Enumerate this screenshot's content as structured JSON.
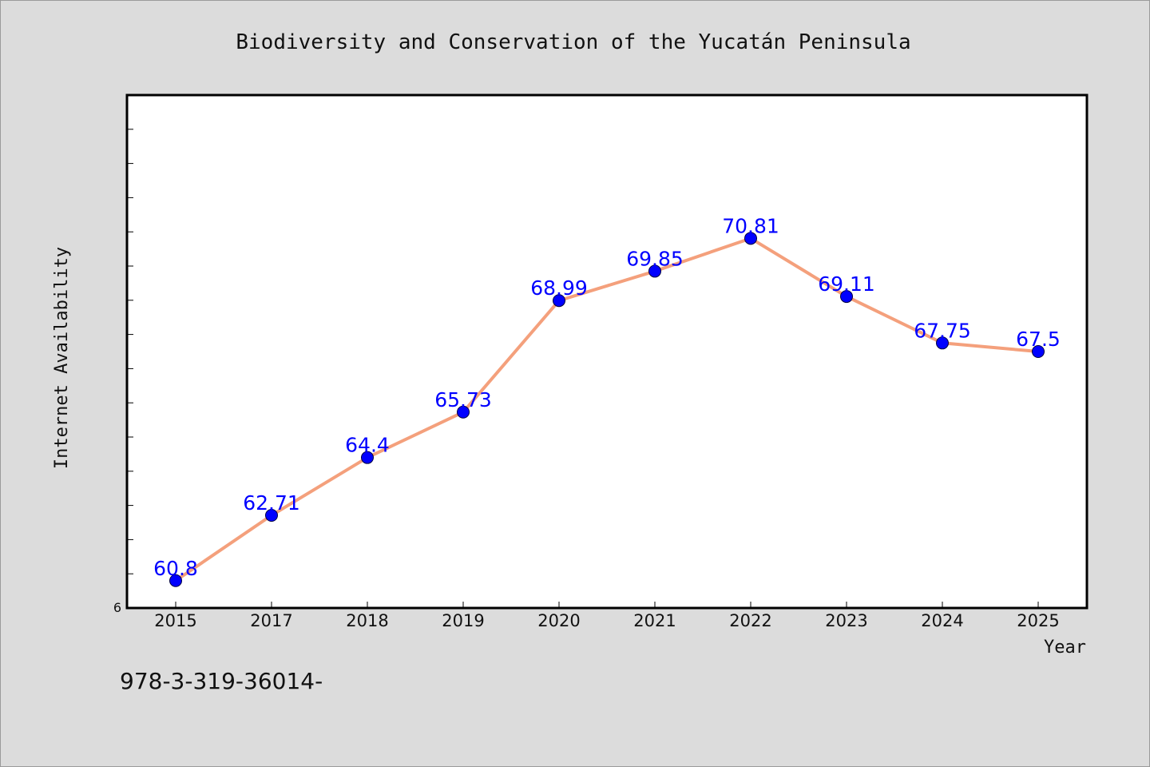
{
  "chart_data": {
    "type": "line",
    "title": "Biodiversity and Conservation of the Yucatán Peninsula",
    "xlabel": "Year",
    "ylabel": "Internet Availability",
    "categories": [
      "2015",
      "2017",
      "2018",
      "2019",
      "2020",
      "2021",
      "2022",
      "2023",
      "2024",
      "2025"
    ],
    "series": [
      {
        "values": [
          60.8,
          62.71,
          64.4,
          65.73,
          68.99,
          69.85,
          70.81,
          69.11,
          67.75,
          67.5
        ],
        "data_labels": [
          "60.8",
          "62.71",
          "64.4",
          "65.73",
          "68.99",
          "69.85",
          "70.81",
          "69.11",
          "67.75",
          "67.5"
        ]
      }
    ],
    "ylim": [
      60,
      75
    ],
    "ytick_label": "6",
    "grid": false,
    "legend": "none",
    "colors": {
      "line": "#f4a07c",
      "marker": "#0000ff",
      "data_label": "#0000ff",
      "plot_background": "#ffffff",
      "page_background": "#dcdcdc"
    }
  },
  "footer": {
    "text": "978-3-319-36014-"
  }
}
